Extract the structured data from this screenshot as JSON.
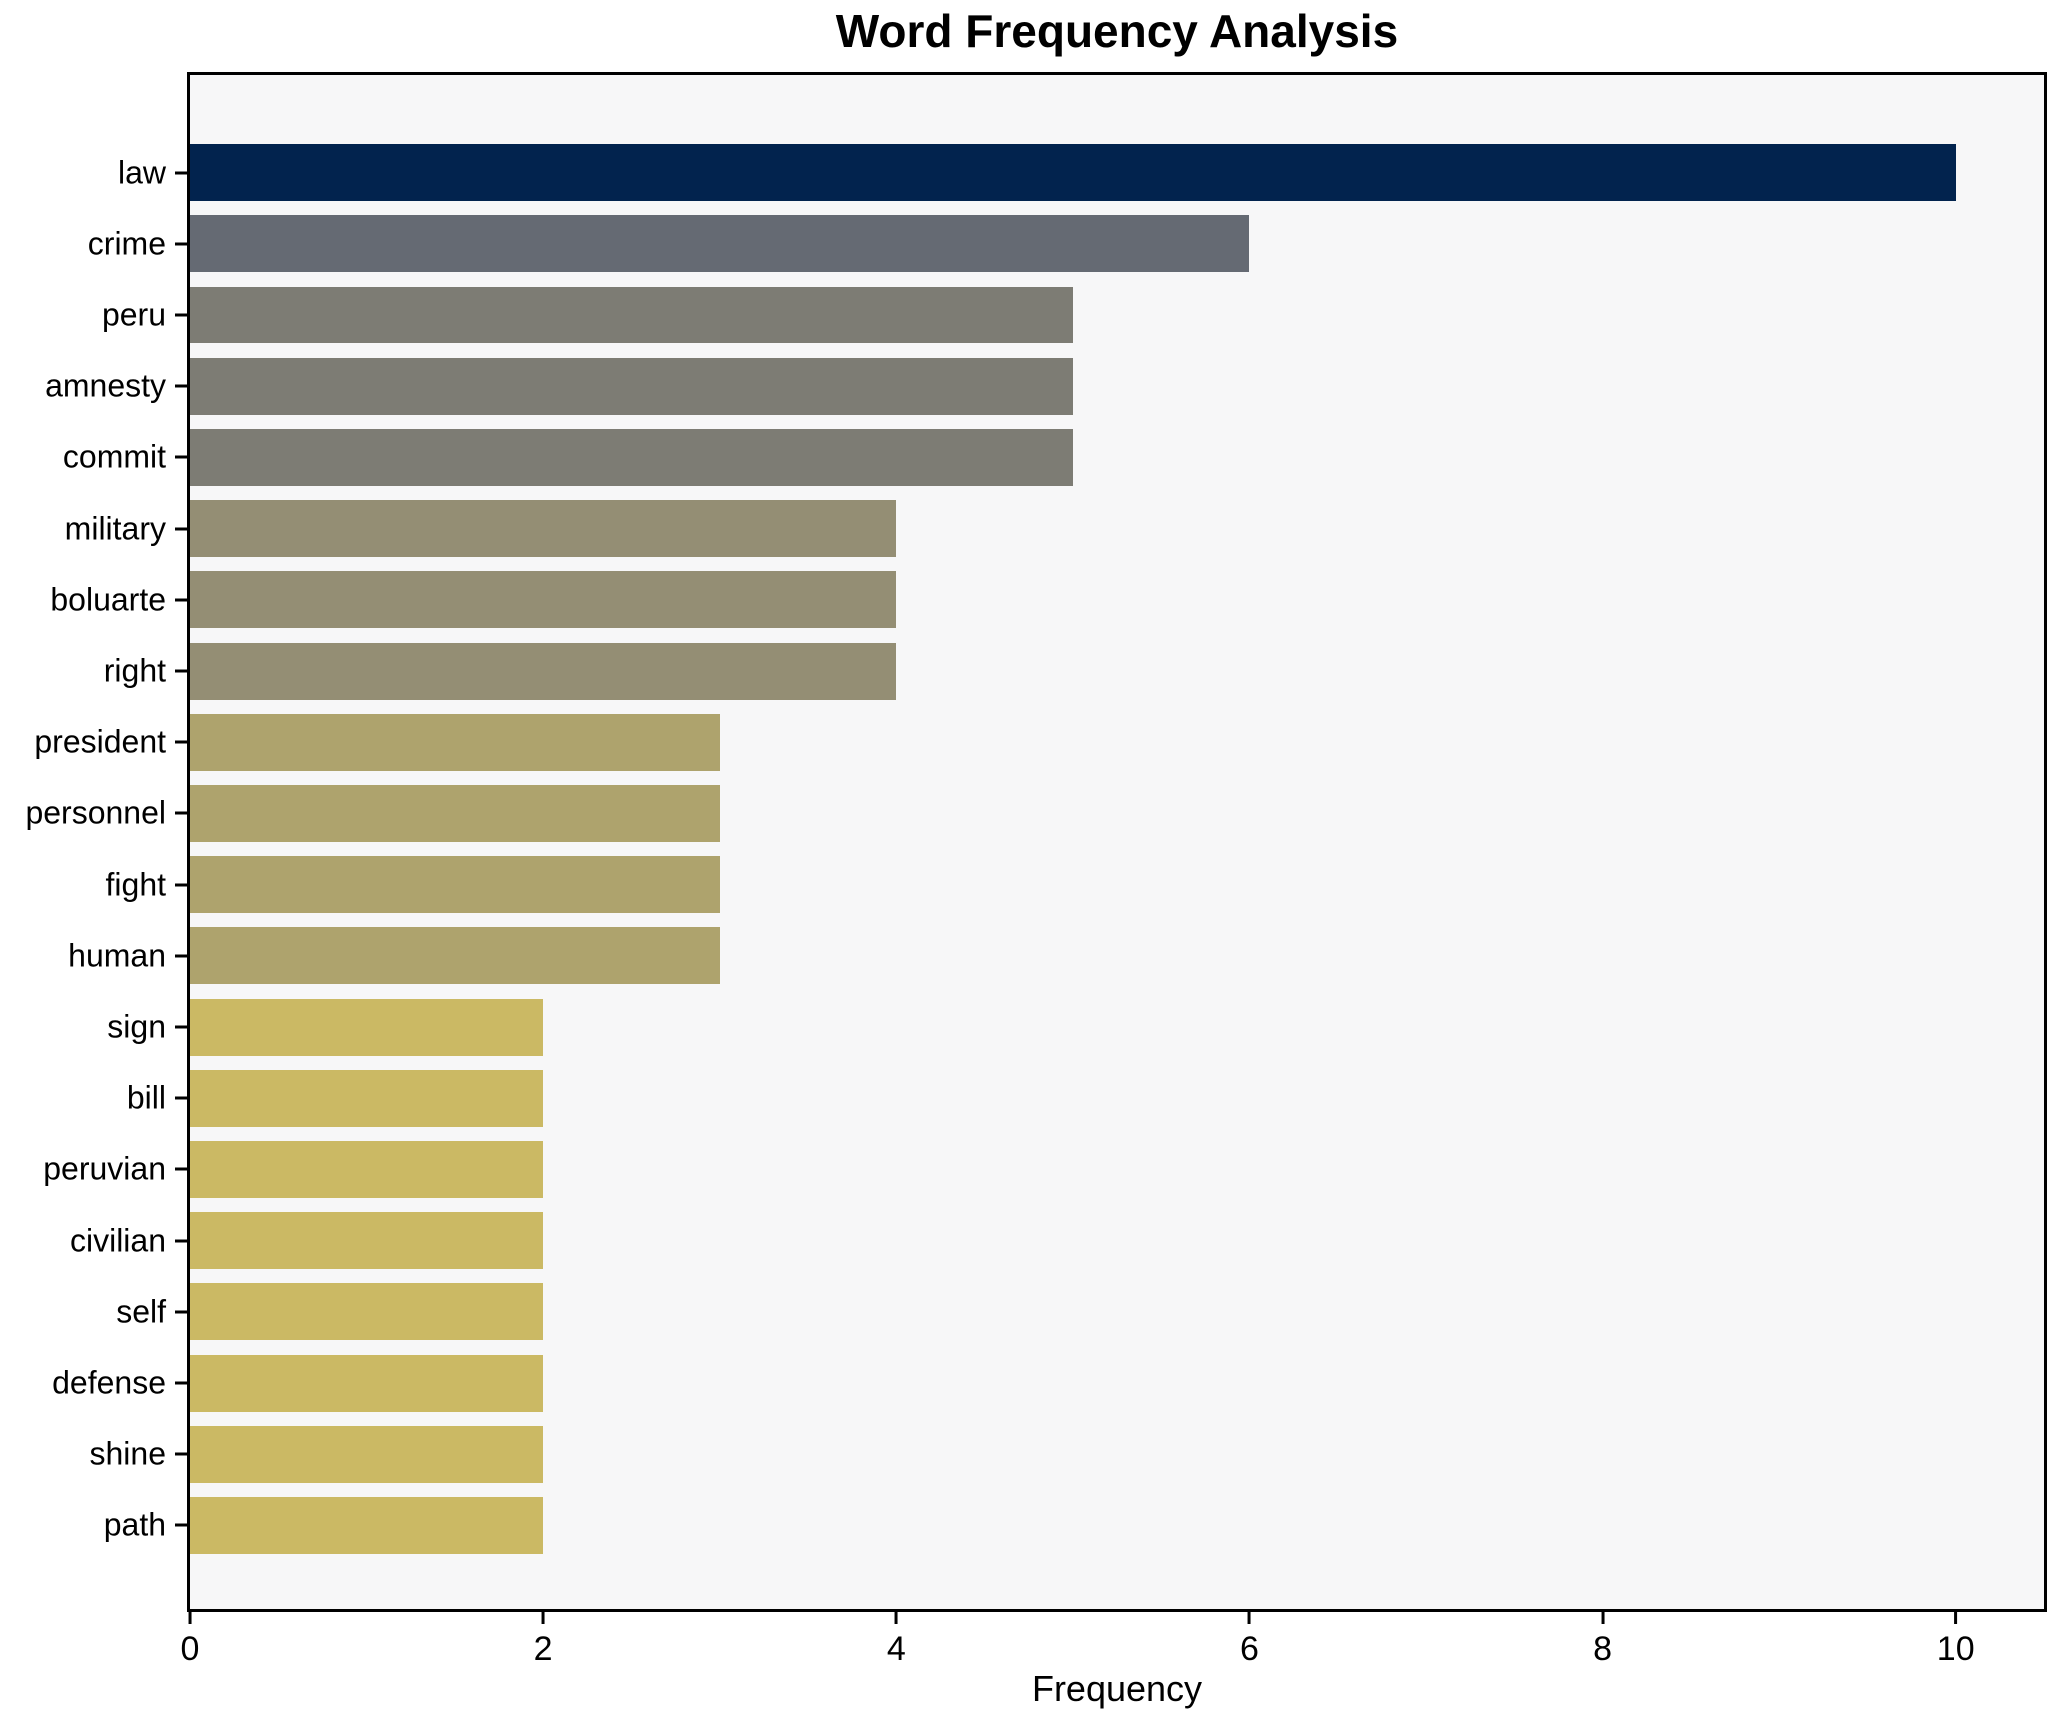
{
  "chart_data": {
    "type": "bar",
    "orientation": "horizontal",
    "title": "Word Frequency Analysis",
    "xlabel": "Frequency",
    "ylabel": "",
    "xlim": [
      0,
      10.5
    ],
    "x_ticks": [
      0,
      2,
      4,
      6,
      8,
      10
    ],
    "grid": false,
    "legend": "none",
    "plot_bg": "#f7f7f8",
    "spine_color": "#000000",
    "categories": [
      "law",
      "crime",
      "peru",
      "amnesty",
      "commit",
      "military",
      "boluarte",
      "right",
      "president",
      "personnel",
      "fight",
      "human",
      "sign",
      "bill",
      "peruvian",
      "civilian",
      "self",
      "defense",
      "shine",
      "path"
    ],
    "values": [
      10,
      6,
      5,
      5,
      5,
      4,
      4,
      4,
      3,
      3,
      3,
      3,
      2,
      2,
      2,
      2,
      2,
      2,
      2,
      2
    ],
    "bars": [
      {
        "label": "law",
        "value": 10,
        "color": "#02234e"
      },
      {
        "label": "crime",
        "value": 6,
        "color": "#656a73"
      },
      {
        "label": "peru",
        "value": 5,
        "color": "#7d7c74"
      },
      {
        "label": "amnesty",
        "value": 5,
        "color": "#7d7c74"
      },
      {
        "label": "commit",
        "value": 5,
        "color": "#7d7c74"
      },
      {
        "label": "military",
        "value": 4,
        "color": "#948e74"
      },
      {
        "label": "boluarte",
        "value": 4,
        "color": "#948e74"
      },
      {
        "label": "right",
        "value": 4,
        "color": "#948e74"
      },
      {
        "label": "president",
        "value": 3,
        "color": "#aea36d"
      },
      {
        "label": "personnel",
        "value": 3,
        "color": "#aea36d"
      },
      {
        "label": "fight",
        "value": 3,
        "color": "#aea36d"
      },
      {
        "label": "human",
        "value": 3,
        "color": "#aea36d"
      },
      {
        "label": "sign",
        "value": 2,
        "color": "#cbb964"
      },
      {
        "label": "bill",
        "value": 2,
        "color": "#cbb964"
      },
      {
        "label": "peruvian",
        "value": 2,
        "color": "#cbb964"
      },
      {
        "label": "civilian",
        "value": 2,
        "color": "#cbb964"
      },
      {
        "label": "self",
        "value": 2,
        "color": "#cbb964"
      },
      {
        "label": "defense",
        "value": 2,
        "color": "#cbb964"
      },
      {
        "label": "shine",
        "value": 2,
        "color": "#cbb964"
      },
      {
        "label": "path",
        "value": 2,
        "color": "#cbb964"
      }
    ]
  }
}
